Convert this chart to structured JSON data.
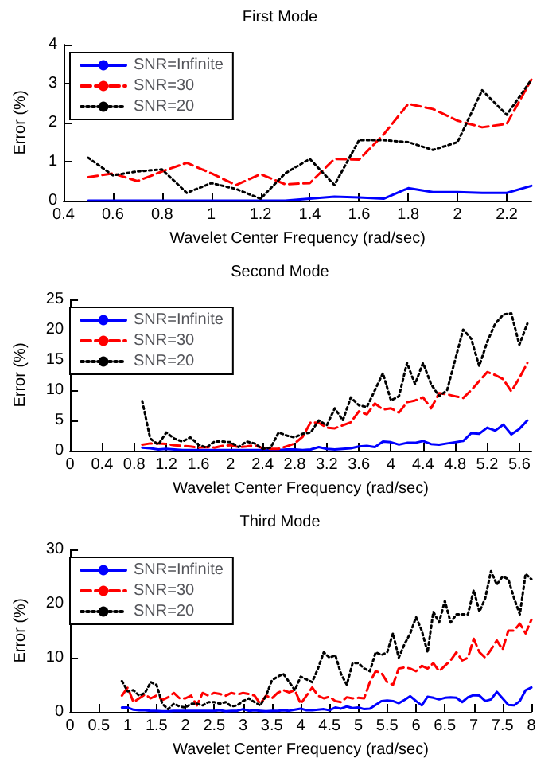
{
  "chart_data": [
    {
      "type": "line",
      "title": "First Mode",
      "xlabel": "Wavelet Center Frequency (rad/sec)",
      "ylabel": "Error (%)",
      "x": [
        0.5,
        0.6,
        0.7,
        0.8,
        0.9,
        1.0,
        1.1,
        1.2,
        1.3,
        1.4,
        1.5,
        1.6,
        1.7,
        1.8,
        1.9,
        2.0,
        2.1,
        2.2,
        2.3
      ],
      "xlim": [
        0.4,
        2.3
      ],
      "xticks": [
        0.4,
        0.6,
        0.8,
        1,
        1.2,
        1.4,
        1.6,
        1.8,
        2,
        2.2
      ],
      "ylim": [
        0,
        4
      ],
      "yticks": [
        0,
        1,
        2,
        3,
        4
      ],
      "grid": false,
      "legend": "top left",
      "marker": "none",
      "series": [
        {
          "name": "SNR=Infinite",
          "color": "#0000ff",
          "line_style": "solid",
          "values": [
            0,
            0,
            0,
            0,
            0,
            0,
            0,
            0,
            0,
            0.05,
            0.1,
            0.08,
            0.05,
            0.32,
            0.22,
            0.22,
            0.2,
            0.2,
            0.38
          ]
        },
        {
          "name": "SNR=30",
          "color": "#ff0000",
          "line_style": "dashed",
          "values": [
            0.6,
            0.7,
            0.5,
            0.75,
            0.97,
            0.7,
            0.4,
            0.68,
            0.42,
            0.45,
            1.07,
            1.05,
            1.7,
            2.48,
            2.35,
            2.05,
            1.88,
            1.97,
            3.1
          ]
        },
        {
          "name": "SNR=20",
          "color": "#000000",
          "line_style": "dotted",
          "values": [
            1.1,
            0.65,
            0.75,
            0.8,
            0.2,
            0.45,
            0.3,
            0.05,
            0.7,
            1.07,
            0.4,
            1.55,
            1.55,
            1.5,
            1.3,
            1.5,
            2.83,
            2.2,
            3.1
          ]
        }
      ]
    },
    {
      "type": "line",
      "title": "Second Mode",
      "xlabel": "Wavelet Center Frequency (rad/sec)",
      "ylabel": "Error (%)",
      "x": [
        0.9,
        1.0,
        1.1,
        1.2,
        1.3,
        1.4,
        1.5,
        1.6,
        1.7,
        1.8,
        1.9,
        2.0,
        2.1,
        2.2,
        2.3,
        2.4,
        2.5,
        2.6,
        2.7,
        2.8,
        2.9,
        3.0,
        3.1,
        3.2,
        3.3,
        3.4,
        3.5,
        3.6,
        3.7,
        3.8,
        3.9,
        4.0,
        4.1,
        4.2,
        4.3,
        4.4,
        4.5,
        4.6,
        4.7,
        4.8,
        4.9,
        5.0,
        5.1,
        5.2,
        5.3,
        5.4,
        5.5,
        5.6,
        5.7
      ],
      "xlim": [
        0,
        5.75
      ],
      "xticks": [
        0,
        0.4,
        0.8,
        1.2,
        1.6,
        2,
        2.4,
        2.8,
        3.2,
        3.6,
        4,
        4.4,
        4.8,
        5.2,
        5.6
      ],
      "ylim": [
        0,
        25
      ],
      "yticks": [
        0,
        5,
        10,
        15,
        20,
        25
      ],
      "grid": false,
      "legend": "top left",
      "marker": "none",
      "series": [
        {
          "name": "SNR=Infinite",
          "color": "#0000ff",
          "line_style": "solid",
          "values": [
            0.5,
            0.4,
            0.2,
            0.3,
            0.2,
            0.1,
            0.1,
            0.1,
            0.1,
            0.1,
            0.1,
            0.1,
            0.1,
            0.1,
            0.1,
            0.1,
            0.1,
            0.1,
            0.2,
            0.2,
            0.1,
            0.2,
            0.6,
            0.3,
            0.2,
            0.3,
            0.4,
            0.7,
            0.8,
            0.6,
            1.5,
            1.4,
            1.0,
            1.3,
            1.3,
            1.6,
            1.1,
            1.0,
            1.2,
            1.4,
            1.6,
            2.9,
            2.8,
            3.8,
            3.3,
            4.3,
            2.7,
            3.6,
            5.0
          ]
        },
        {
          "name": "SNR=30",
          "color": "#ff0000",
          "line_style": "dashed",
          "values": [
            1.0,
            1.2,
            1.2,
            1.1,
            0.9,
            0.8,
            0.7,
            0.5,
            0.6,
            0.5,
            0.8,
            0.9,
            0.6,
            0.7,
            0.9,
            0.4,
            0.3,
            0.3,
            0.7,
            1.2,
            2.3,
            4.7,
            4.6,
            3.8,
            3.7,
            4.2,
            4.7,
            6.5,
            6.0,
            7.8,
            6.8,
            7.0,
            6.3,
            8.0,
            8.3,
            8.8,
            7.0,
            9.5,
            9.3,
            9.0,
            8.7,
            10.0,
            11.5,
            13.0,
            12.5,
            11.8,
            9.8,
            12.0,
            14.5
          ]
        },
        {
          "name": "SNR=20",
          "color": "#000000",
          "line_style": "dotted",
          "values": [
            8.2,
            2.0,
            1.0,
            3.0,
            2.0,
            1.5,
            2.2,
            1.0,
            0.5,
            1.5,
            1.5,
            1.4,
            0.6,
            1.5,
            1.2,
            0.3,
            0.5,
            3.0,
            2.5,
            2.2,
            2.8,
            3.0,
            5.0,
            4.2,
            7.0,
            5.0,
            8.8,
            7.5,
            7.2,
            10.0,
            12.8,
            8.3,
            9.0,
            14.5,
            11.0,
            14.5,
            11.0,
            9.0,
            10.0,
            15.0,
            20.0,
            18.5,
            14.0,
            18.0,
            21.0,
            22.5,
            22.7,
            17.5,
            21.0
          ]
        }
      ]
    },
    {
      "type": "line",
      "title": "Third Mode",
      "xlabel": "Wavelet Center Frequency (rad/sec)",
      "ylabel": "Error (%)",
      "x": [
        0.9,
        1.0,
        1.1,
        1.2,
        1.3,
        1.4,
        1.5,
        1.6,
        1.7,
        1.8,
        1.9,
        2.0,
        2.1,
        2.2,
        2.3,
        2.4,
        2.5,
        2.6,
        2.7,
        2.8,
        2.9,
        3.0,
        3.1,
        3.2,
        3.3,
        3.4,
        3.5,
        3.6,
        3.7,
        3.8,
        3.9,
        4.0,
        4.1,
        4.2,
        4.3,
        4.4,
        4.5,
        4.6,
        4.7,
        4.8,
        4.9,
        5.0,
        5.1,
        5.2,
        5.3,
        5.4,
        5.5,
        5.6,
        5.7,
        5.8,
        5.9,
        6.0,
        6.1,
        6.2,
        6.3,
        6.4,
        6.5,
        6.6,
        6.7,
        6.8,
        6.9,
        7.0,
        7.1,
        7.2,
        7.3,
        7.4,
        7.5,
        7.6,
        7.7,
        7.8,
        7.9,
        8.0
      ],
      "xlim": [
        0,
        8
      ],
      "xticks": [
        0,
        0.5,
        1,
        1.5,
        2,
        2.5,
        3,
        3.5,
        4,
        4.5,
        5,
        5.5,
        6,
        6.5,
        7,
        7.5,
        8
      ],
      "ylim": [
        0,
        30
      ],
      "yticks": [
        0,
        10,
        20,
        30
      ],
      "grid": false,
      "legend": "top left",
      "marker": "none",
      "series": [
        {
          "name": "SNR=Infinite",
          "color": "#0000ff",
          "line_style": "solid",
          "values": [
            0.8,
            0.8,
            0.4,
            0.3,
            0.3,
            0.2,
            0.2,
            0.1,
            0.1,
            0.2,
            0.2,
            0.2,
            0.2,
            0.2,
            0.2,
            0.2,
            0.2,
            0.3,
            0.1,
            0.2,
            0.2,
            0.5,
            0.2,
            0.3,
            0.2,
            0.1,
            0.2,
            0.2,
            0.3,
            0.2,
            0.4,
            0.6,
            0.3,
            0.3,
            0.4,
            0.5,
            0.3,
            0.8,
            0.6,
            1.0,
            0.7,
            0.8,
            0.5,
            0.6,
            1.3,
            2.0,
            2.1,
            2.0,
            1.6,
            2.2,
            2.9,
            2.0,
            1.2,
            2.8,
            2.6,
            2.3,
            2.6,
            2.7,
            2.6,
            1.8,
            2.7,
            3.1,
            3.0,
            2.0,
            2.3,
            3.7,
            2.5,
            1.3,
            1.2,
            2.0,
            4.0,
            4.5
          ]
        },
        {
          "name": "SNR=30",
          "color": "#ff0000",
          "line_style": "dashed",
          "values": [
            3.0,
            4.5,
            1.8,
            2.5,
            3.2,
            2.5,
            3.0,
            2.2,
            2.7,
            3.5,
            2.5,
            2.5,
            3.0,
            1.2,
            3.5,
            3.0,
            3.5,
            3.3,
            3.0,
            3.5,
            3.2,
            3.5,
            3.3,
            3.0,
            1.5,
            3.0,
            2.5,
            3.5,
            4.0,
            3.6,
            4.0,
            1.5,
            3.0,
            4.5,
            3.0,
            2.5,
            2.8,
            2.0,
            1.8,
            2.7,
            2.5,
            2.6,
            2.5,
            5.5,
            7.5,
            7.2,
            5.5,
            5.0,
            8.0,
            8.2,
            8.0,
            7.5,
            8.5,
            8.0,
            9.0,
            7.5,
            8.5,
            9.5,
            11.0,
            9.5,
            10.0,
            13.5,
            11.0,
            10.0,
            11.5,
            13.2,
            11.5,
            15.0,
            15.0,
            16.3,
            14.5,
            17.0
          ]
        },
        {
          "name": "SNR=20",
          "color": "#000000",
          "line_style": "dotted",
          "values": [
            5.7,
            3.8,
            4.0,
            3.0,
            3.5,
            5.5,
            5.0,
            1.5,
            0.5,
            1.5,
            1.0,
            0.8,
            1.5,
            1.5,
            1.2,
            1.8,
            1.8,
            1.5,
            1.8,
            1.0,
            1.2,
            2.0,
            2.5,
            1.8,
            1.2,
            3.0,
            5.8,
            6.5,
            7.0,
            5.5,
            4.0,
            6.5,
            6.0,
            5.5,
            8.0,
            11.0,
            10.0,
            10.5,
            7.0,
            5.0,
            9.0,
            9.0,
            8.0,
            7.5,
            11.0,
            10.5,
            11.0,
            14.5,
            10.0,
            12.5,
            14.5,
            17.5,
            15.0,
            11.0,
            18.5,
            16.5,
            20.5,
            16.5,
            18.0,
            18.0,
            18.0,
            22.5,
            18.5,
            21.0,
            26.0,
            23.5,
            25.0,
            24.5,
            21.0,
            18.0,
            25.5,
            24.5
          ]
        }
      ]
    }
  ]
}
